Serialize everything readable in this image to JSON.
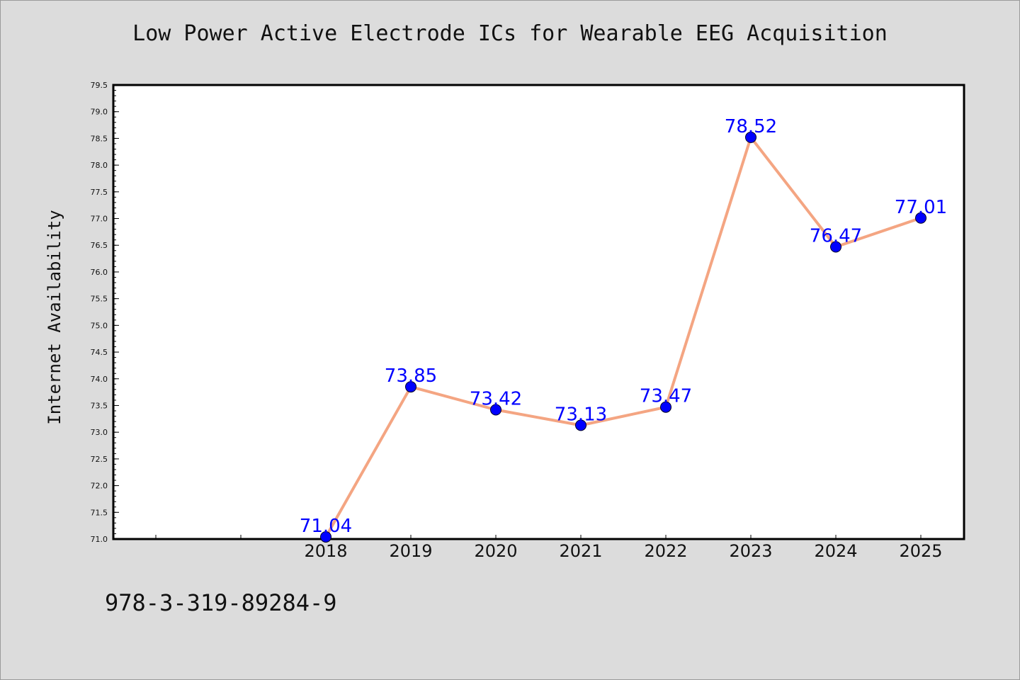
{
  "chart_data": {
    "type": "line",
    "title": "Low Power Active Electrode ICs for Wearable EEG Acquisition",
    "xlabel": "",
    "ylabel": "Internet Availability",
    "x": [
      "2018",
      "2019",
      "2020",
      "2021",
      "2022",
      "2023",
      "2024",
      "2025"
    ],
    "series": [
      {
        "values": [
          71.04,
          73.85,
          73.42,
          73.13,
          73.47,
          78.52,
          76.47,
          77.01
        ],
        "data_labels": [
          "71.04",
          "73.85",
          "73.42",
          "73.13",
          "73.47",
          "78.52",
          "76.47",
          "77.01"
        ],
        "line_color": "#f4a582",
        "marker_color": "#0000ff"
      }
    ],
    "ylim": [
      71.0,
      79.5
    ],
    "yticks": [
      "71.0",
      "71.5",
      "72.0",
      "72.5",
      "73.0",
      "73.5",
      "74.0",
      "74.5",
      "75.0",
      "75.5",
      "76.0",
      "76.5",
      "77.0",
      "77.5",
      "78.0",
      "78.5",
      "79.0",
      "79.5"
    ],
    "grid": false,
    "label_color": "#0000ff"
  },
  "footer": {
    "code": "978-3-319-89284-9"
  }
}
